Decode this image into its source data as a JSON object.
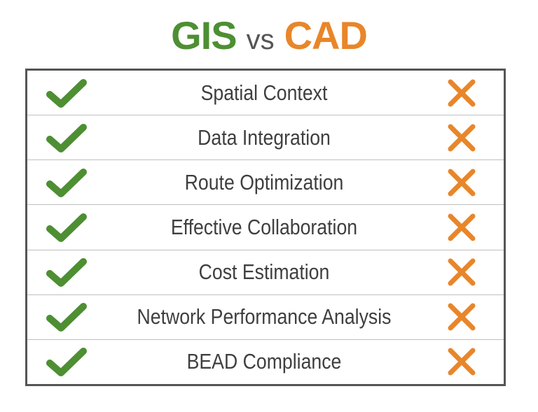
{
  "title": {
    "gis": "GIS",
    "vs": "vs",
    "cad": "CAD"
  },
  "colors": {
    "gis_green": "#4d8f32",
    "cad_orange": "#e8862a",
    "text_gray": "#3f3f3f",
    "border_gray": "#555555"
  },
  "rows": [
    {
      "label": "Spatial Context",
      "gis": "check-icon",
      "cad": "x-icon"
    },
    {
      "label": "Data Integration",
      "gis": "check-icon",
      "cad": "x-icon"
    },
    {
      "label": "Route Optimization",
      "gis": "check-icon",
      "cad": "x-icon"
    },
    {
      "label": "Effective Collaboration",
      "gis": "check-icon",
      "cad": "x-icon"
    },
    {
      "label": "Cost Estimation",
      "gis": "check-icon",
      "cad": "x-icon"
    },
    {
      "label": "Network Performance Analysis",
      "gis": "check-icon",
      "cad": "x-icon"
    },
    {
      "label": "BEAD Compliance",
      "gis": "check-icon",
      "cad": "x-icon"
    }
  ]
}
